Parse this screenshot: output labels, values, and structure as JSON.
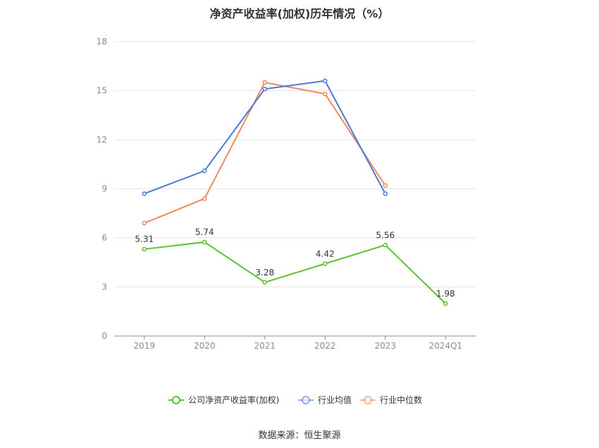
{
  "chart_data": {
    "type": "line",
    "title": "净资产收益率(加权)历年情况（%）",
    "xlabel": "",
    "ylabel": "",
    "categories": [
      "2019",
      "2020",
      "2021",
      "2022",
      "2023",
      "2024Q1"
    ],
    "yticks": [
      "0",
      "3",
      "6",
      "9",
      "12",
      "15",
      "18"
    ],
    "ylim": [
      0,
      18
    ],
    "grid": true,
    "legend_position": "bottom-center",
    "series": [
      {
        "name": "公司净资产收益率(加权)",
        "color": "#5cc32b",
        "values": [
          5.31,
          5.74,
          3.28,
          4.42,
          5.56,
          1.98
        ],
        "labels": [
          "5.31",
          "5.74",
          "3.28",
          "4.42",
          "5.56",
          "1.98"
        ]
      },
      {
        "name": "行业均值",
        "color": "#4a7ad6",
        "values": [
          8.7,
          10.1,
          15.1,
          15.6,
          8.7,
          null
        ]
      },
      {
        "name": "行业中位数",
        "color": "#f08a5d",
        "values": [
          6.9,
          8.4,
          15.5,
          14.8,
          9.2,
          null
        ]
      }
    ]
  },
  "source": "数据来源：恒生聚源"
}
